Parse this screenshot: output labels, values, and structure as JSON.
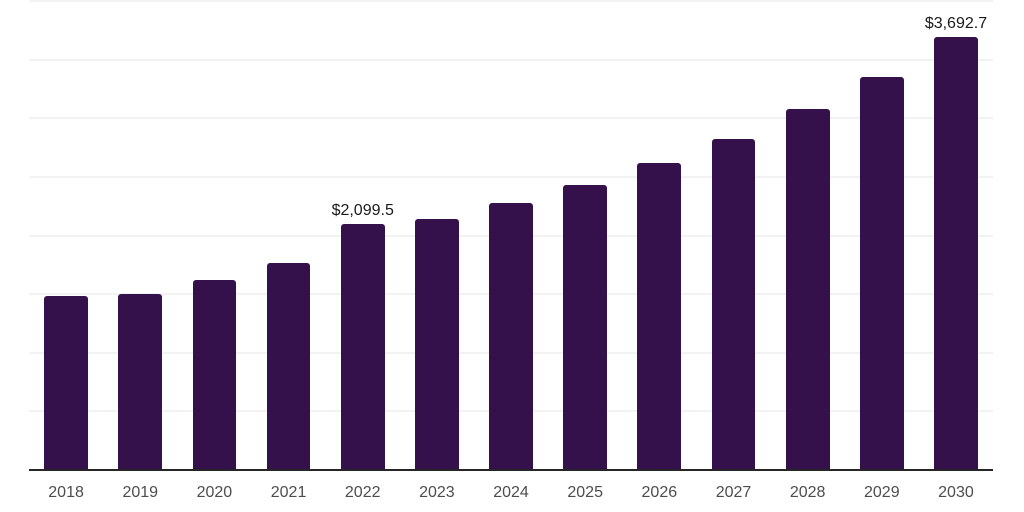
{
  "chart_data": {
    "type": "bar",
    "title": "",
    "xlabel": "",
    "ylabel": "",
    "categories": [
      "2018",
      "2019",
      "2020",
      "2021",
      "2022",
      "2023",
      "2024",
      "2025",
      "2026",
      "2027",
      "2028",
      "2029",
      "2030"
    ],
    "values": [
      1480,
      1505,
      1620,
      1765,
      2099.5,
      2145,
      2275,
      2430,
      2615,
      2820,
      3075,
      3355,
      3692.7
    ],
    "value_labels": [
      "",
      "",
      "",
      "",
      "$2,099.5",
      "",
      "",
      "",
      "",
      "",
      "",
      "",
      "$3,692.7"
    ],
    "ylim": [
      0,
      4000
    ],
    "gridline_step": 500,
    "grid": true,
    "legend": false,
    "colors": {
      "bar": "#35114B",
      "axis_line": "#262626",
      "gridline": "#f2f2f2",
      "tick_label": "#4d4d4d",
      "value_label": "#1a1a1a",
      "background": "#ffffff"
    }
  }
}
